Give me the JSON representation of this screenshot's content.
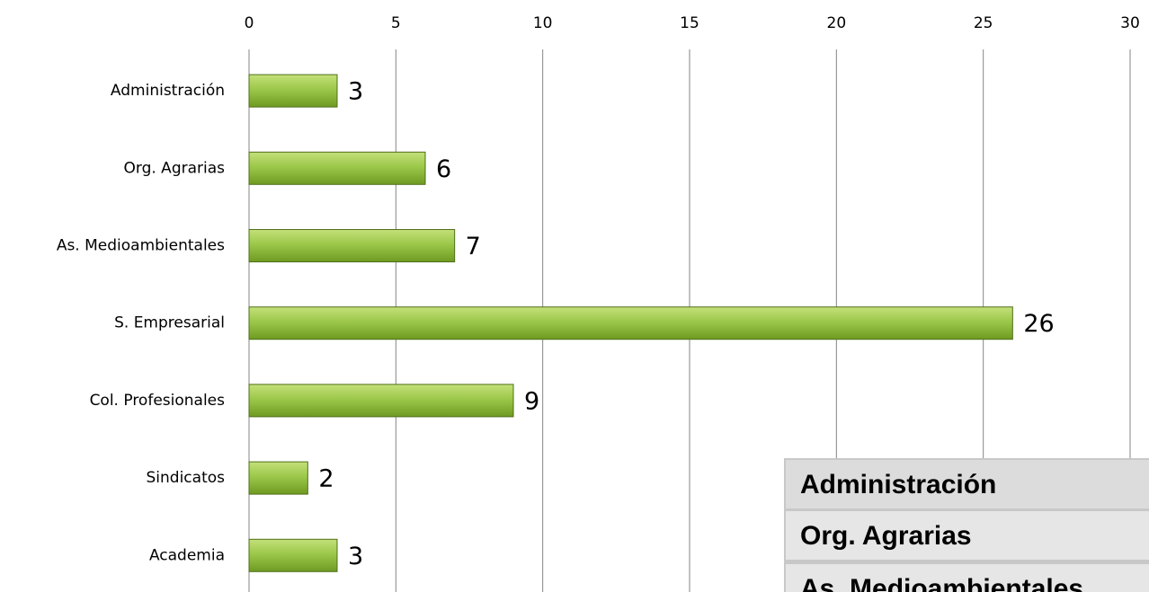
{
  "chart_data": {
    "type": "bar",
    "orientation": "horizontal",
    "categories": [
      "Administración",
      "Org. Agrarias",
      "As. Medioambientales",
      "S. Empresarial",
      "Col. Profesionales",
      "Sindicatos",
      "Academia"
    ],
    "values": [
      3,
      6,
      7,
      26,
      9,
      2,
      3
    ],
    "color": "#8cb83a",
    "xlim": [
      0,
      30
    ],
    "xticks": [
      0,
      5,
      10,
      15,
      20,
      25,
      30
    ],
    "grid": true
  },
  "overlay": {
    "items": [
      "Administración",
      "Org. Agrarias",
      "As. Medioambientales"
    ]
  }
}
